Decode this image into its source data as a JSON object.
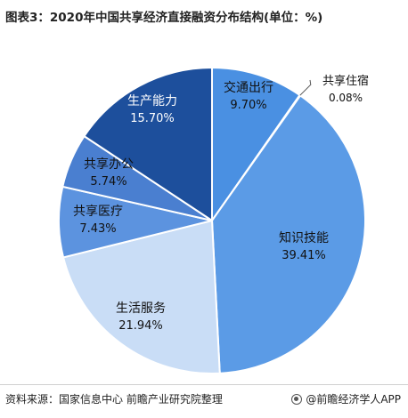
{
  "title": "图表3：2020年中国共享经济直接融资分布结构(单位：%)",
  "chart_data": {
    "type": "pie",
    "title": "图表3：2020年中国共享经济直接融资分布结构(单位：%)",
    "slices": [
      {
        "label": "交通出行",
        "value": 9.7,
        "display": "9.70%",
        "color": "#4a90e2"
      },
      {
        "label": "共享住宿",
        "value": 0.08,
        "display": "0.08%",
        "color": "#2f6fc4"
      },
      {
        "label": "知识技能",
        "value": 39.41,
        "display": "39.41%",
        "color": "#5b9be6"
      },
      {
        "label": "生活服务",
        "value": 21.94,
        "display": "21.94%",
        "color": "#c9ddf6"
      },
      {
        "label": "共享医疗",
        "value": 7.43,
        "display": "7.43%",
        "color": "#5c93df"
      },
      {
        "label": "共享办公",
        "value": 5.74,
        "display": "5.74%",
        "color": "#4a7fd0"
      },
      {
        "label": "生产能力",
        "value": 15.7,
        "display": "15.70%",
        "color": "#1d4f9c"
      }
    ]
  },
  "footer": {
    "source": "资料来源：国家信息中心 前瞻产业研究院整理",
    "brand": "@前瞻经济学人APP"
  }
}
